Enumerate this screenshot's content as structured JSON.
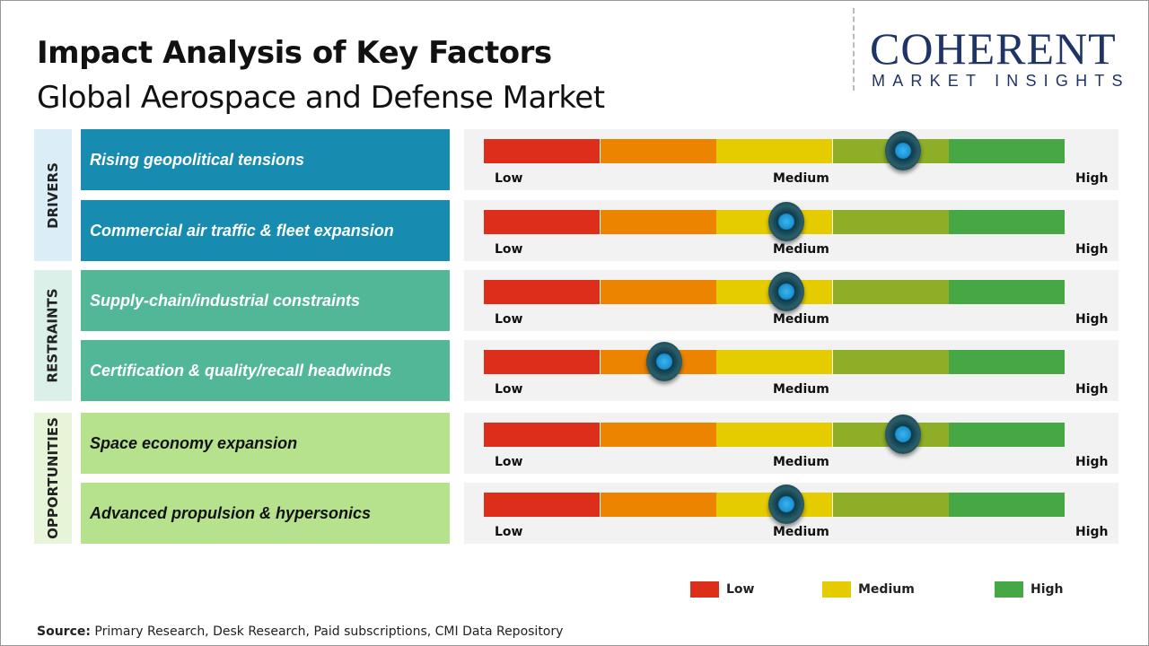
{
  "title": "Impact Analysis of Key Factors",
  "subtitle": "Global Aerospace and Defense Market",
  "logo": {
    "line1": "COHERENT",
    "line2": "MARKET INSIGHTS"
  },
  "chart_data": {
    "type": "gauge-bars",
    "scale": [
      "Low",
      "Medium",
      "High"
    ],
    "segment_colors": [
      "#dd2e1c",
      "#ec8400",
      "#e5cc00",
      "#8fae28",
      "#46a844"
    ],
    "categories": [
      {
        "name": "DRIVERS",
        "color": "#dbeef7",
        "label_color": "#178bb0",
        "text_color": "#ffffff",
        "factors": [
          {
            "label": "Rising geopolitical tensions",
            "impact": 0.72
          },
          {
            "label": "Commercial air traffic & fleet expansion",
            "impact": 0.52
          }
        ]
      },
      {
        "name": "RESTRAINTS",
        "color": "#daf0e8",
        "label_color": "#52b796",
        "text_color": "#ffffff",
        "factors": [
          {
            "label": "Supply-chain/industrial constraints",
            "impact": 0.52
          },
          {
            "label": "Certification & quality/recall headwinds",
            "impact": 0.31
          }
        ]
      },
      {
        "name": "OPPORTUNITIES",
        "color": "#e6f5d8",
        "label_color": "#b6e28e",
        "text_color": "#111111",
        "factors": [
          {
            "label": "Space economy expansion",
            "impact": 0.72
          },
          {
            "label": "Advanced propulsion & hypersonics",
            "impact": 0.52
          }
        ]
      }
    ],
    "legend": [
      {
        "label": "Low",
        "color": "#dd2e1c"
      },
      {
        "label": "Medium",
        "color": "#e5cc00"
      },
      {
        "label": "High",
        "color": "#46a844"
      }
    ]
  },
  "source": {
    "label": "Source:",
    "text": " Primary Research, Desk Research, Paid subscriptions, CMI Data Repository"
  }
}
